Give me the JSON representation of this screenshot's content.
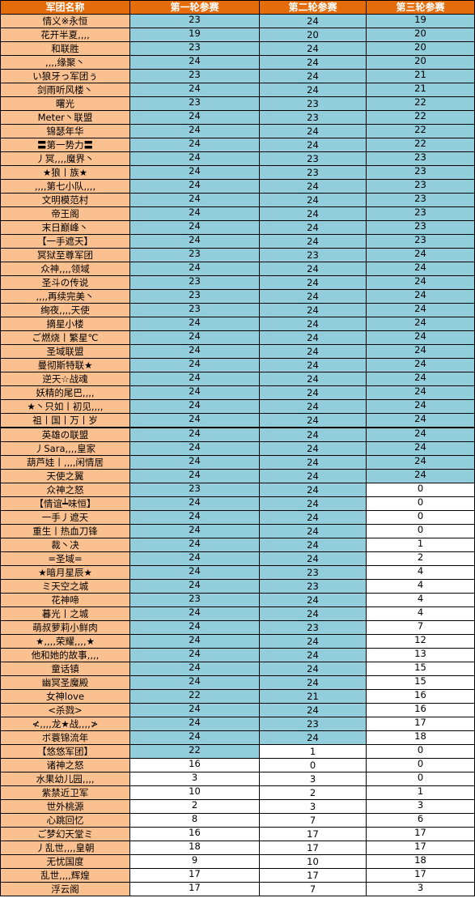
{
  "headers": [
    "军团名称",
    "第一轮参赛",
    "第二轮参赛",
    "第三轮参赛"
  ],
  "colors": {
    "header_bg": "#e46c0a",
    "header_text": "#ffffff",
    "name_bg": "#fac090",
    "count_bg": "#92cddc",
    "empty_bg": "#ffffff"
  },
  "rows": [
    {
      "name": "情义※永恒",
      "r1": "23",
      "r2": "24",
      "r3": "19"
    },
    {
      "name": "花开半夏,,,,",
      "r1": "19",
      "r2": "20",
      "r3": "20"
    },
    {
      "name": "和联胜",
      "r1": "23",
      "r2": "24",
      "r3": "20"
    },
    {
      "name": ",,,,缘聚丶",
      "r1": "24",
      "r2": "24",
      "r3": "20"
    },
    {
      "name": "い狼牙っ军团ぅ",
      "r1": "23",
      "r2": "24",
      "r3": "21"
    },
    {
      "name": "剑雨听风楼丶",
      "r1": "24",
      "r2": "24",
      "r3": "21"
    },
    {
      "name": "曙光",
      "r1": "23",
      "r2": "23",
      "r3": "22"
    },
    {
      "name": "Meter丶联盟",
      "r1": "24",
      "r2": "23",
      "r3": "22"
    },
    {
      "name": "锦瑟年华",
      "r1": "24",
      "r2": "24",
      "r3": "22"
    },
    {
      "name": "〓第一势力〓",
      "r1": "24",
      "r2": "24",
      "r3": "22"
    },
    {
      "name": "丿冥,,,,魔界丶",
      "r1": "24",
      "r2": "23",
      "r3": "23"
    },
    {
      "name": "★狼丨族★",
      "r1": "24",
      "r2": "23",
      "r3": "23"
    },
    {
      "name": ",,,,第七小队,,,,",
      "r1": "24",
      "r2": "24",
      "r3": "23"
    },
    {
      "name": "文明模范村",
      "r1": "24",
      "r2": "24",
      "r3": "23"
    },
    {
      "name": "帝王阁",
      "r1": "24",
      "r2": "24",
      "r3": "23"
    },
    {
      "name": "末日巅峰丶",
      "r1": "24",
      "r2": "24",
      "r3": "23"
    },
    {
      "name": "【一手遮天】",
      "r1": "24",
      "r2": "24",
      "r3": "23"
    },
    {
      "name": "冥狱至尊军团",
      "r1": "23",
      "r2": "23",
      "r3": "24"
    },
    {
      "name": "众神,,,,领域",
      "r1": "24",
      "r2": "24",
      "r3": "24"
    },
    {
      "name": "圣斗の传说",
      "r1": "23",
      "r2": "24",
      "r3": "24"
    },
    {
      "name": ",,,,再续完美丶",
      "r1": "23",
      "r2": "24",
      "r3": "24"
    },
    {
      "name": "绚夜,,,,天使",
      "r1": "23",
      "r2": "24",
      "r3": "24"
    },
    {
      "name": "摘星小楼",
      "r1": "24",
      "r2": "24",
      "r3": "24"
    },
    {
      "name": "ご燃烧丨繁星℃",
      "r1": "24",
      "r2": "24",
      "r3": "24"
    },
    {
      "name": "圣域联盟",
      "r1": "24",
      "r2": "24",
      "r3": "24"
    },
    {
      "name": "曼彻斯特联★",
      "r1": "24",
      "r2": "24",
      "r3": "24"
    },
    {
      "name": "逆天☆战魂",
      "r1": "24",
      "r2": "24",
      "r3": "24"
    },
    {
      "name": "妖精的尾巴,,,,",
      "r1": "24",
      "r2": "24",
      "r3": "24"
    },
    {
      "name": "★丶只如丨初见,,,,",
      "r1": "24",
      "r2": "24",
      "r3": "24"
    },
    {
      "name": "祖丨国丨万丨岁",
      "r1": "24",
      "r2": "24",
      "r3": "24"
    },
    {
      "name": "英雄の联盟",
      "r1": "24",
      "r2": "24",
      "r3": "24"
    },
    {
      "name": "丿Sara,,,,皇家",
      "r1": "24",
      "r2": "24",
      "r3": "24"
    },
    {
      "name": "葫芦娃丨,,,,闲情居",
      "r1": "24",
      "r2": "24",
      "r3": "24"
    },
    {
      "name": "天使之翼",
      "r1": "24",
      "r2": "24",
      "r3": "24"
    },
    {
      "name": "众神之怒",
      "r1": "23",
      "r2": "24",
      "r3": "0"
    },
    {
      "name": "【情谊┷味恒】",
      "r1": "24",
      "r2": "24",
      "r3": "0"
    },
    {
      "name": "一手丿遮天",
      "r1": "24",
      "r2": "24",
      "r3": "0"
    },
    {
      "name": "重生丨热血刀锋",
      "r1": "24",
      "r2": "24",
      "r3": "0"
    },
    {
      "name": "裁丶决",
      "r1": "24",
      "r2": "24",
      "r3": "1"
    },
    {
      "name": "=圣域=",
      "r1": "24",
      "r2": "24",
      "r3": "2"
    },
    {
      "name": "★暗月星辰★",
      "r1": "24",
      "r2": "23",
      "r3": "4"
    },
    {
      "name": "ミ天空之城",
      "r1": "24",
      "r2": "23",
      "r3": "4"
    },
    {
      "name": "花神啼",
      "r1": "23",
      "r2": "24",
      "r3": "4"
    },
    {
      "name": "暮光丨之城",
      "r1": "24",
      "r2": "24",
      "r3": "4"
    },
    {
      "name": "萌叔萝莉小鲜肉",
      "r1": "24",
      "r2": "23",
      "r3": "7"
    },
    {
      "name": "★,,,,荣耀,,,,★",
      "r1": "24",
      "r2": "24",
      "r3": "12"
    },
    {
      "name": "他和她的故事,,,,",
      "r1": "24",
      "r2": "24",
      "r3": "13"
    },
    {
      "name": "童话镇",
      "r1": "24",
      "r2": "24",
      "r3": "15"
    },
    {
      "name": "幽冥圣魔殿",
      "r1": "24",
      "r2": "24",
      "r3": "15"
    },
    {
      "name": "女神love",
      "r1": "22",
      "r2": "21",
      "r3": "16"
    },
    {
      "name": "<杀戮>",
      "r1": "24",
      "r2": "24",
      "r3": "16"
    },
    {
      "name": "≮,,,,龙★战,,,,≯",
      "r1": "24",
      "r2": "23",
      "r3": "17"
    },
    {
      "name": "ボ蓑锦流年",
      "r1": "24",
      "r2": "24",
      "r3": "18"
    },
    {
      "name": "【悠悠军团】",
      "r1": "22",
      "r2": "1",
      "r3": "0"
    },
    {
      "name": "诸神之怒",
      "r1": "16",
      "r2": "0",
      "r3": "0"
    },
    {
      "name": "水果幼儿园,,,,",
      "r1": "3",
      "r2": "3",
      "r3": "0"
    },
    {
      "name": "紫禁近卫军",
      "r1": "10",
      "r2": "2",
      "r3": "1"
    },
    {
      "name": "世外桃源",
      "r1": "2",
      "r2": "3",
      "r3": "3"
    },
    {
      "name": "心跳回忆",
      "r1": "8",
      "r2": "7",
      "r3": "6"
    },
    {
      "name": "ご梦幻天堂ミ",
      "r1": "16",
      "r2": "17",
      "r3": "17"
    },
    {
      "name": "丿乱世,,,,皇朝",
      "r1": "18",
      "r2": "17",
      "r3": "17"
    },
    {
      "name": "无忧国度",
      "r1": "9",
      "r2": "10",
      "r3": "18"
    },
    {
      "name": "乱世,,,,辉煌",
      "r1": "17",
      "r2": "17",
      "r3": "17"
    },
    {
      "name": "浮云阁",
      "r1": "17",
      "r2": "7",
      "r3": "3"
    }
  ]
}
